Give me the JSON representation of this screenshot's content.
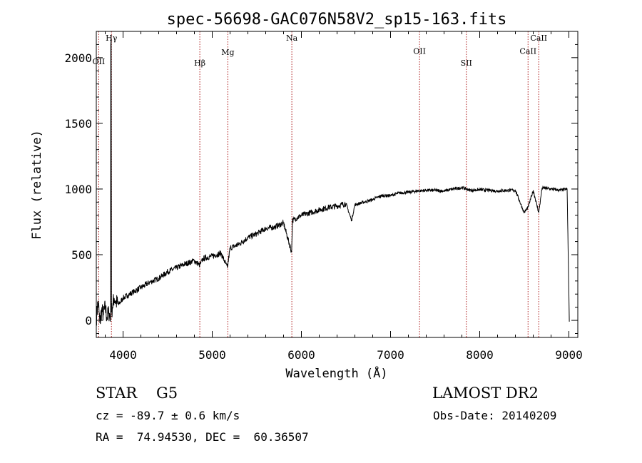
{
  "chart_data": {
    "type": "line",
    "title": "spec-56698-GAC076N58V2_sp15-163.fits",
    "xlabel": "Wavelength (Å)",
    "ylabel": "Flux (relative)",
    "xlim": [
      3700,
      9100
    ],
    "ylim": [
      -130,
      2200
    ],
    "xticks": [
      4000,
      5000,
      6000,
      7000,
      8000,
      9000
    ],
    "yticks": [
      0,
      500,
      1000,
      1500,
      2000
    ],
    "grid": false,
    "series": [
      {
        "x": [
          3700,
          3720,
          3740,
          3760,
          3780,
          3800,
          3820,
          3840,
          3860,
          3862,
          3866,
          3870,
          3880,
          3900,
          3920,
          3950,
          4000,
          4050,
          4100,
          4200,
          4300,
          4400,
          4500,
          4600,
          4700,
          4800,
          4860,
          4900,
          5000,
          5100,
          5170,
          5200,
          5300,
          5400,
          5500,
          5600,
          5700,
          5800,
          5890,
          5900,
          6000,
          6100,
          6200,
          6300,
          6400,
          6500,
          6563,
          6600,
          6700,
          6800,
          6900,
          7000,
          7100,
          7200,
          7300,
          7400,
          7500,
          7600,
          7700,
          7800,
          7900,
          8000,
          8100,
          8200,
          8300,
          8400,
          8498,
          8542,
          8600,
          8662,
          8700,
          8800,
          8900,
          8980,
          9000,
          9005
        ],
        "y": [
          10,
          150,
          -20,
          80,
          40,
          100,
          20,
          60,
          30,
          2100,
          2150,
          60,
          100,
          170,
          140,
          120,
          170,
          190,
          210,
          250,
          290,
          320,
          370,
          400,
          430,
          455,
          420,
          470,
          490,
          510,
          400,
          550,
          580,
          630,
          660,
          700,
          710,
          740,
          520,
          760,
          800,
          820,
          840,
          860,
          870,
          890,
          760,
          880,
          900,
          920,
          950,
          950,
          970,
          975,
          985,
          990,
          990,
          985,
          1000,
          1010,
          990,
          995,
          990,
          985,
          990,
          990,
          820,
          860,
          990,
          820,
          1010,
          1000,
          990,
          1000,
          200,
          -10
        ]
      }
    ],
    "lines": [
      {
        "label": "OII",
        "wavelength": 3727,
        "label_y": 1950
      },
      {
        "label": "Hγ",
        "wavelength": 3870,
        "label_y": 2130
      },
      {
        "label": "Hβ",
        "wavelength": 4861,
        "label_y": 1940
      },
      {
        "label": "Mg",
        "wavelength": 5175,
        "label_y": 2020
      },
      {
        "label": "Na",
        "wavelength": 5893,
        "label_y": 2130
      },
      {
        "label": "OII",
        "wavelength": 7325,
        "label_y": 2030
      },
      {
        "label": "SII",
        "wavelength": 7850,
        "label_y": 1940
      },
      {
        "label": "CaII",
        "wavelength": 8542,
        "label_y": 2030
      },
      {
        "label": "CaII",
        "wavelength": 8662,
        "label_y": 2130
      }
    ],
    "colors": {
      "axes": "#000000",
      "line_marker": "#b02020",
      "spectrum": "#000000"
    }
  },
  "info": {
    "object_type": "STAR",
    "subclass": "G5",
    "survey": "LAMOST DR2",
    "cz": "cz = -89.7 ± 0.6 km/s",
    "obs_date": "Obs-Date: 20140209",
    "coords": "RA =  74.94530, DEC =  60.36507"
  }
}
